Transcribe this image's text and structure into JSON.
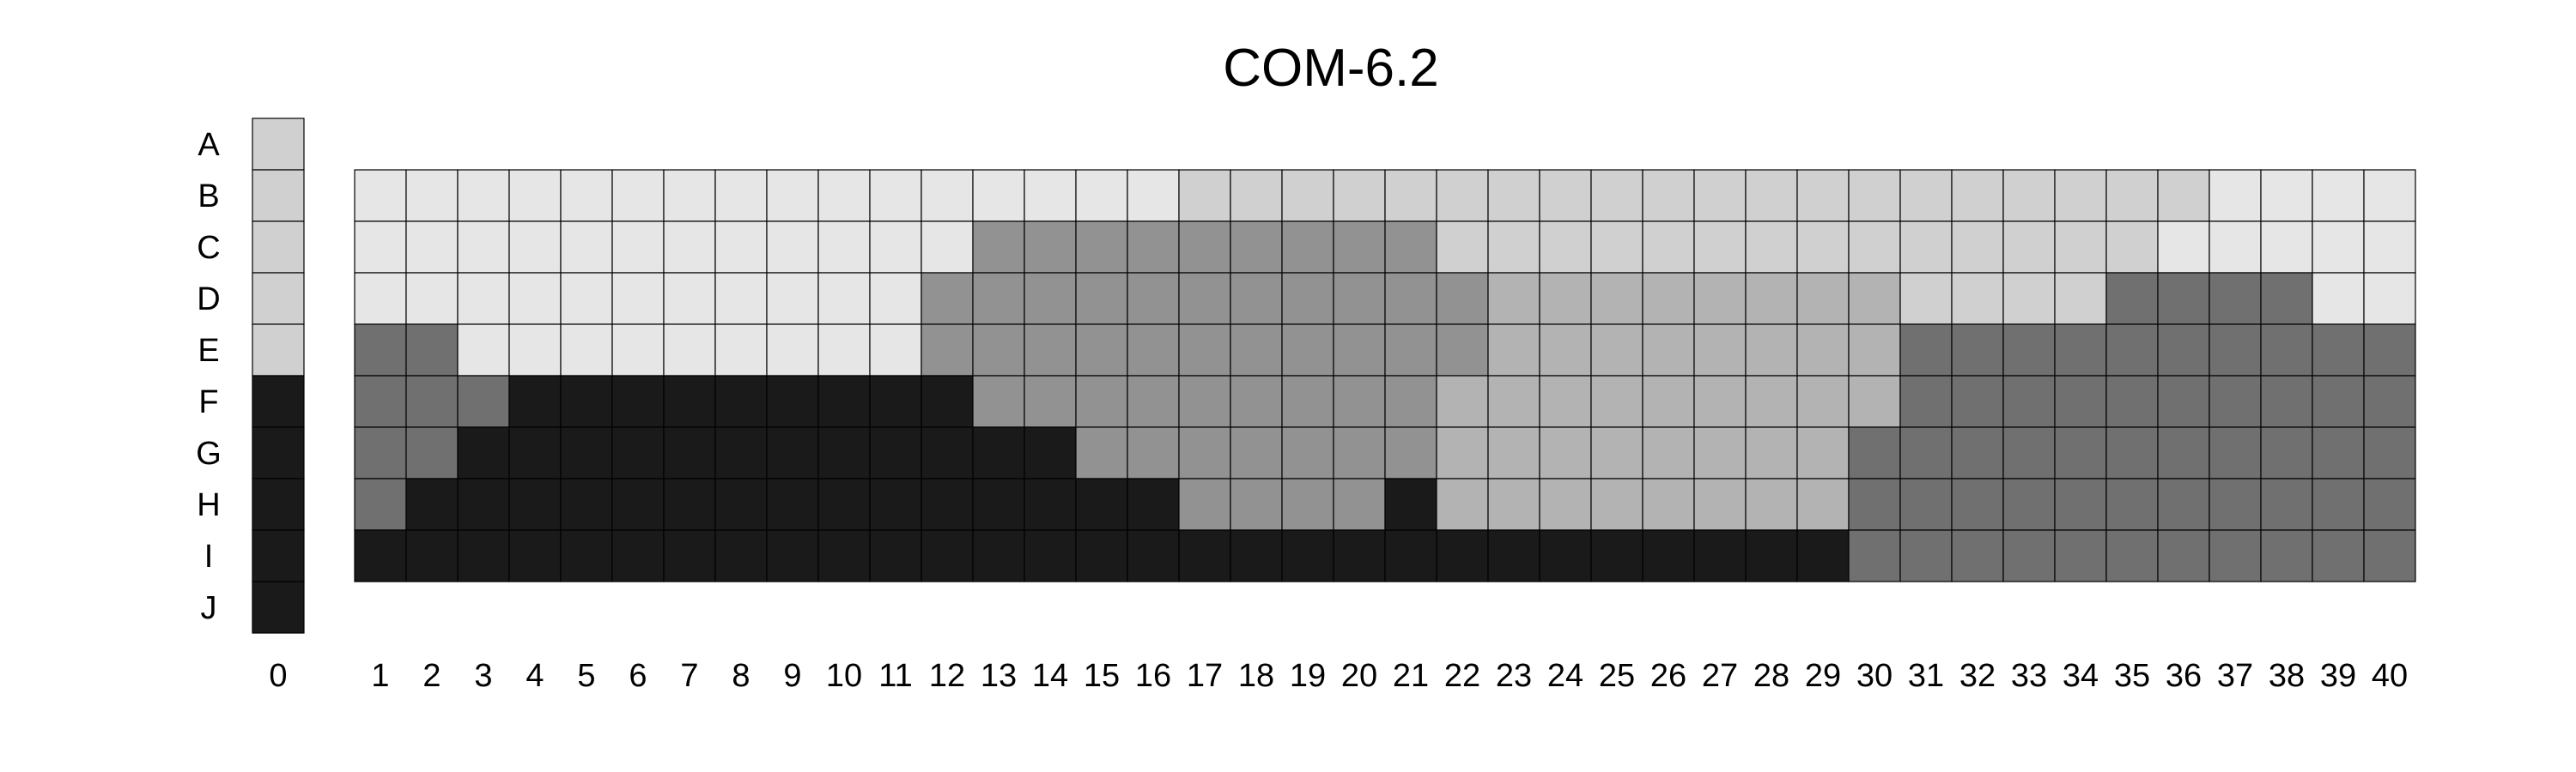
{
  "chart_data": {
    "type": "heatmap",
    "title": "COM-6.2",
    "row_labels": [
      "A",
      "B",
      "C",
      "D",
      "E",
      "F",
      "G",
      "H",
      "I",
      "J"
    ],
    "column_labels": [
      "0",
      "1",
      "2",
      "3",
      "4",
      "5",
      "6",
      "7",
      "8",
      "9",
      "10",
      "11",
      "12",
      "13",
      "14",
      "15",
      "16",
      "17",
      "18",
      "19",
      "20",
      "21",
      "22",
      "23",
      "24",
      "25",
      "26",
      "27",
      "28",
      "29",
      "30",
      "31",
      "32",
      "33",
      "34",
      "35",
      "36",
      "37",
      "38",
      "39",
      "40"
    ],
    "palette": [
      "#e6e6e6",
      "#d0d0d0",
      "#b3b3b3",
      "#929292",
      "#707070",
      "#1a1a1a"
    ],
    "column_0": {
      "rows": [
        "A",
        "B",
        "C",
        "D",
        "E",
        "F",
        "G",
        "H",
        "I",
        "J"
      ],
      "levels": [
        1,
        1,
        1,
        1,
        1,
        5,
        5,
        5,
        5,
        5
      ]
    },
    "grid": {
      "rows": [
        "B",
        "C",
        "D",
        "E",
        "F",
        "G",
        "H",
        "I"
      ],
      "columns": [
        "1",
        "2",
        "3",
        "4",
        "5",
        "6",
        "7",
        "8",
        "9",
        "10",
        "11",
        "12",
        "13",
        "14",
        "15",
        "16",
        "17",
        "18",
        "19",
        "20",
        "21",
        "22",
        "23",
        "24",
        "25",
        "26",
        "27",
        "28",
        "29",
        "30",
        "31",
        "32",
        "33",
        "34",
        "35",
        "36",
        "37",
        "38",
        "39",
        "40"
      ],
      "levels": [
        [
          0,
          0,
          0,
          0,
          0,
          0,
          0,
          0,
          0,
          0,
          0,
          0,
          0,
          0,
          0,
          0,
          1,
          1,
          1,
          1,
          1,
          1,
          1,
          1,
          1,
          1,
          1,
          1,
          1,
          1,
          1,
          1,
          1,
          1,
          1,
          1,
          0,
          0,
          0,
          0
        ],
        [
          0,
          0,
          0,
          0,
          0,
          0,
          0,
          0,
          0,
          0,
          0,
          0,
          3,
          3,
          3,
          3,
          3,
          3,
          3,
          3,
          3,
          1,
          1,
          1,
          1,
          1,
          1,
          1,
          1,
          1,
          1,
          1,
          1,
          1,
          1,
          0,
          0,
          0,
          0,
          0
        ],
        [
          0,
          0,
          0,
          0,
          0,
          0,
          0,
          0,
          0,
          0,
          0,
          3,
          3,
          3,
          3,
          3,
          3,
          3,
          3,
          3,
          3,
          3,
          2,
          2,
          2,
          2,
          2,
          2,
          2,
          2,
          1,
          1,
          1,
          1,
          4,
          4,
          4,
          4,
          0,
          0
        ],
        [
          4,
          4,
          0,
          0,
          0,
          0,
          0,
          0,
          0,
          0,
          0,
          3,
          3,
          3,
          3,
          3,
          3,
          3,
          3,
          3,
          3,
          3,
          2,
          2,
          2,
          2,
          2,
          2,
          2,
          2,
          4,
          4,
          4,
          4,
          4,
          4,
          4,
          4,
          4,
          4
        ],
        [
          4,
          4,
          4,
          5,
          5,
          5,
          5,
          5,
          5,
          5,
          5,
          5,
          3,
          3,
          3,
          3,
          3,
          3,
          3,
          3,
          3,
          2,
          2,
          2,
          2,
          2,
          2,
          2,
          2,
          2,
          4,
          4,
          4,
          4,
          4,
          4,
          4,
          4,
          4,
          4
        ],
        [
          4,
          4,
          5,
          5,
          5,
          5,
          5,
          5,
          5,
          5,
          5,
          5,
          5,
          5,
          3,
          3,
          3,
          3,
          3,
          3,
          3,
          2,
          2,
          2,
          2,
          2,
          2,
          2,
          2,
          4,
          4,
          4,
          4,
          4,
          4,
          4,
          4,
          4,
          4,
          4
        ],
        [
          4,
          5,
          5,
          5,
          5,
          5,
          5,
          5,
          5,
          5,
          5,
          5,
          5,
          5,
          5,
          5,
          3,
          3,
          3,
          3,
          5,
          2,
          2,
          2,
          2,
          2,
          2,
          2,
          2,
          4,
          4,
          4,
          4,
          4,
          4,
          4,
          4,
          4,
          4,
          4
        ],
        [
          5,
          5,
          5,
          5,
          5,
          5,
          5,
          5,
          5,
          5,
          5,
          5,
          5,
          5,
          5,
          5,
          5,
          5,
          5,
          5,
          5,
          5,
          5,
          5,
          5,
          5,
          5,
          5,
          5,
          4,
          4,
          4,
          4,
          4,
          4,
          4,
          4,
          4,
          4,
          4
        ]
      ]
    },
    "legend": "none",
    "grid_lines": true
  }
}
